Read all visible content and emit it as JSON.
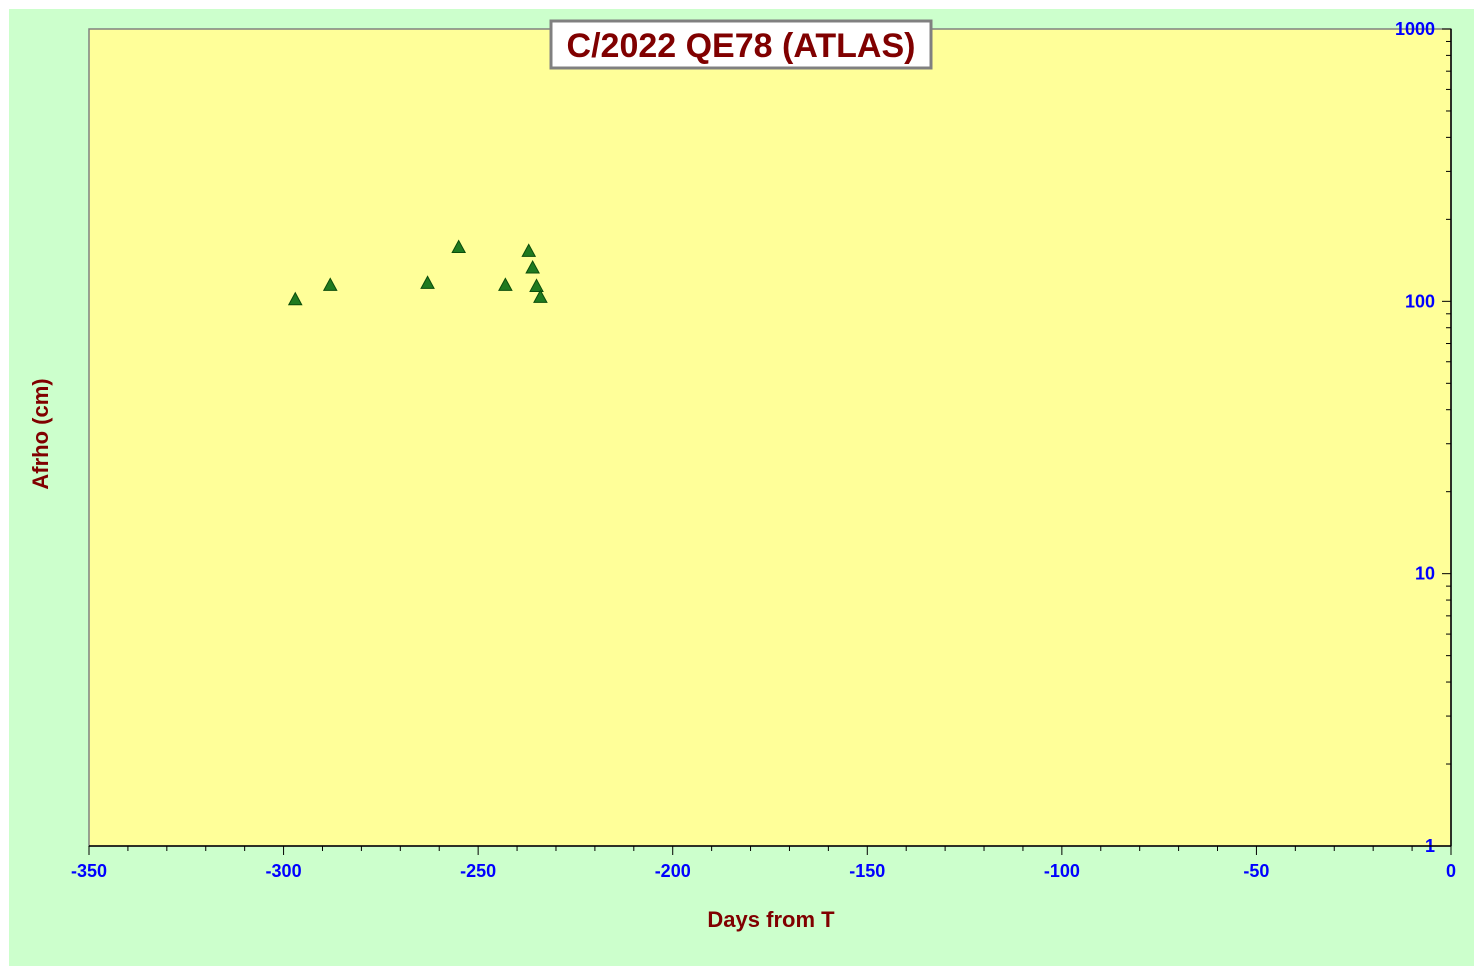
{
  "chart_data": {
    "type": "scatter",
    "title": "C/2022 QE78 (ATLAS)",
    "xlabel": "Days from T",
    "ylabel": "Afrho (cm)",
    "xlim": [
      -350,
      0
    ],
    "ylim": [
      1,
      1000
    ],
    "y_scale": "log",
    "y_axis_side": "right",
    "x_ticks": [
      -350,
      -300,
      -250,
      -200,
      -150,
      -100,
      -50,
      0
    ],
    "x_tick_labels": [
      "-350",
      "-300",
      "-250",
      "-200",
      "-150",
      "-100",
      "-50",
      "0"
    ],
    "y_ticks": [
      1,
      10,
      100,
      1000
    ],
    "y_tick_labels": [
      "1",
      "10",
      "100",
      "1000"
    ],
    "grid": false,
    "legend": "none",
    "marker": "triangle",
    "series": [
      {
        "points": [
          {
            "x": -297,
            "y": 101
          },
          {
            "x": -288,
            "y": 114
          },
          {
            "x": -263,
            "y": 116
          },
          {
            "x": -255,
            "y": 157
          },
          {
            "x": -243,
            "y": 114
          },
          {
            "x": -237,
            "y": 152
          },
          {
            "x": -236,
            "y": 132
          },
          {
            "x": -235,
            "y": 113
          },
          {
            "x": -234,
            "y": 103
          }
        ]
      }
    ],
    "colors": {
      "background": "#ccffcc",
      "plot_area": "#ffff99",
      "plot_border": "#808080",
      "title_text": "#800000",
      "axis_title_text": "#800000",
      "tick_label_text": "#0000ff",
      "marker_fill": "#1f7a1f",
      "marker_stroke": "#0b4d0b"
    }
  }
}
